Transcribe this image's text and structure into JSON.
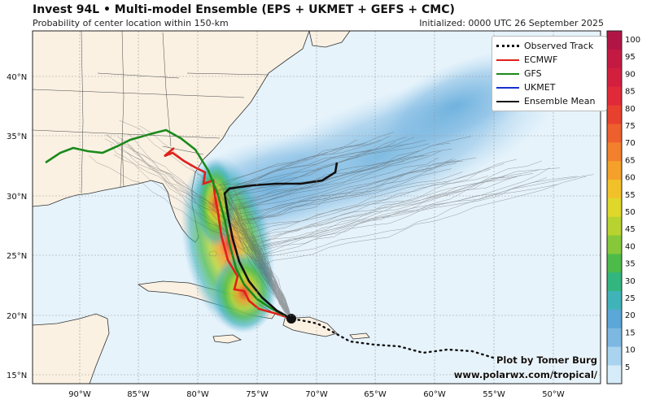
{
  "title": "Invest 94L • Multi-model Ensemble (EPS + UKMET + GEFS + CMC)",
  "subtitle": "Probability of center location within 150-km",
  "initialized": "Initialized: 0000 UTC 26 September 2025",
  "legend": [
    {
      "label": "Observed Track",
      "color": "#111111",
      "style": "dotted"
    },
    {
      "label": "ECMWF",
      "color": "#e0201b",
      "style": "solid"
    },
    {
      "label": "GFS",
      "color": "#1a8a1a",
      "style": "solid"
    },
    {
      "label": "UKMET",
      "color": "#1530d0",
      "style": "solid"
    },
    {
      "label": "Ensemble Mean",
      "color": "#111111",
      "style": "solid"
    }
  ],
  "credit": {
    "line1": "Plot by Tomer Burg",
    "line2": "www.polarwx.com/tropical/"
  },
  "lat_labels": [
    "40°N",
    "35°N",
    "30°N",
    "25°N",
    "20°N",
    "15°N"
  ],
  "lon_labels": [
    "90°W",
    "85°W",
    "80°W",
    "75°W",
    "70°W",
    "65°W",
    "60°W",
    "55°W",
    "50°W"
  ],
  "colorbar": {
    "ticks": [
      "5",
      "10",
      "15",
      "20",
      "25",
      "30",
      "35",
      "40",
      "45",
      "50",
      "55",
      "60",
      "65",
      "70",
      "75",
      "80",
      "85",
      "90",
      "95",
      "100"
    ],
    "colors": [
      "#d6ecf8",
      "#a9d3ef",
      "#7db8e2",
      "#5aa7d8",
      "#40b3b9",
      "#33b57f",
      "#4cbb4a",
      "#86c83a",
      "#b8d32f",
      "#dfd72a",
      "#f2c12a",
      "#f5a02a",
      "#f2802c",
      "#ee5f2e",
      "#e8402f",
      "#e02a3a",
      "#d31f3e",
      "#c41a42",
      "#b11546"
    ]
  },
  "colors": {
    "land": "#faf1e3",
    "ocean": "#e6f3fb",
    "grid": "#9a9a9a",
    "ecmwf": "#e0201b",
    "gfs": "#1a8a1a",
    "mean": "#111111"
  }
}
